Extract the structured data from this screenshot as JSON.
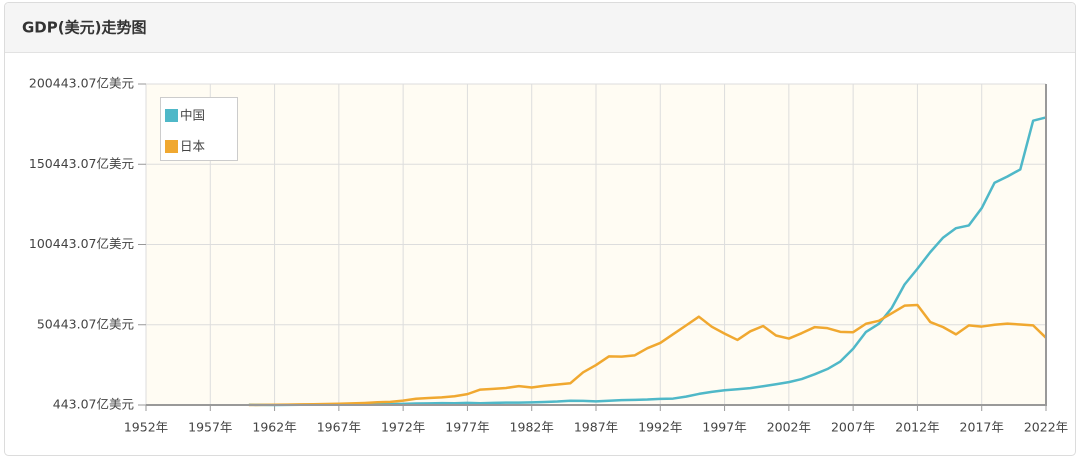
{
  "chart_data": {
    "type": "line",
    "title": "GDP(美元)走势图",
    "x": [
      1960,
      1961,
      1962,
      1963,
      1964,
      1965,
      1966,
      1967,
      1968,
      1969,
      1970,
      1971,
      1972,
      1973,
      1974,
      1975,
      1976,
      1977,
      1978,
      1979,
      1980,
      1981,
      1982,
      1983,
      1984,
      1985,
      1986,
      1987,
      1988,
      1989,
      1990,
      1991,
      1992,
      1993,
      1994,
      1995,
      1996,
      1997,
      1998,
      1999,
      2000,
      2001,
      2002,
      2003,
      2004,
      2005,
      2006,
      2007,
      2008,
      2009,
      2010,
      2011,
      2012,
      2013,
      2014,
      2015,
      2016,
      2017,
      2018,
      2019,
      2020,
      2021,
      2022
    ],
    "series": [
      {
        "name": "中国",
        "color": "#4fb8c8",
        "values": [
          597,
          500,
          472,
          507,
          593,
          704,
          767,
          728,
          700,
          794,
          926,
          998,
          1136,
          1384,
          1442,
          1634,
          1539,
          1750,
          1495,
          1783,
          1911,
          1958,
          2050,
          2303,
          2599,
          3094,
          3008,
          2729,
          3123,
          3477,
          3609,
          3834,
          4269,
          4447,
          5643,
          7345,
          8637,
          9616,
          10290,
          10940,
          12113,
          13394,
          14705,
          16602,
          19553,
          22860,
          27521,
          35522,
          45982,
          50990,
          60872,
          75515,
          85322,
          95704,
          104757,
          110616,
          112333,
          123104,
          138948,
          142799,
          147228,
          177600,
          179600
        ]
      },
      {
        "name": "日本",
        "color": "#f0a830",
        "values": [
          443,
          536,
          608,
          697,
          816,
          910,
          1058,
          1237,
          1469,
          1723,
          2126,
          2403,
          3180,
          4320,
          4798,
          5210,
          5868,
          7215,
          10054,
          10484,
          11053,
          12180,
          11347,
          12433,
          13184,
          13985,
          20787,
          25329,
          30716,
          30546,
          31328,
          35842,
          39088,
          44545,
          49986,
          55458,
          49230,
          44925,
          40981,
          46353,
          49683,
          43741,
          41830,
          45195,
          48932,
          48310,
          46014,
          45793,
          51061,
          52890,
          57590,
          62330,
          62720,
          52120,
          48966,
          44446,
          50036,
          49308,
          50409,
          51179,
          50578,
          50054,
          42321
        ]
      }
    ],
    "xlim": [
      1952,
      2022
    ],
    "xticks": [
      {
        "value": 1952,
        "label": "1952年"
      },
      {
        "value": 1957,
        "label": "1957年"
      },
      {
        "value": 1962,
        "label": "1962年"
      },
      {
        "value": 1967,
        "label": "1967年"
      },
      {
        "value": 1972,
        "label": "1972年"
      },
      {
        "value": 1977,
        "label": "1977年"
      },
      {
        "value": 1982,
        "label": "1982年"
      },
      {
        "value": 1987,
        "label": "1987年"
      },
      {
        "value": 1992,
        "label": "1992年"
      },
      {
        "value": 1997,
        "label": "1997年"
      },
      {
        "value": 2002,
        "label": "2002年"
      },
      {
        "value": 2007,
        "label": "2007年"
      },
      {
        "value": 2012,
        "label": "2012年"
      },
      {
        "value": 2017,
        "label": "2017年"
      },
      {
        "value": 2022,
        "label": "2022年"
      }
    ],
    "ylim": [
      443.07,
      200443.07
    ],
    "yticks": [
      {
        "value": 443.07,
        "label": "443.07亿美元"
      },
      {
        "value": 50443.07,
        "label": "50443.07亿美元"
      },
      {
        "value": 100443.07,
        "label": "100443.07亿美元"
      },
      {
        "value": 150443.07,
        "label": "150443.07亿美元"
      },
      {
        "value": 200443.07,
        "label": "200443.07亿美元"
      }
    ],
    "grid": true,
    "legend": "top-left"
  }
}
